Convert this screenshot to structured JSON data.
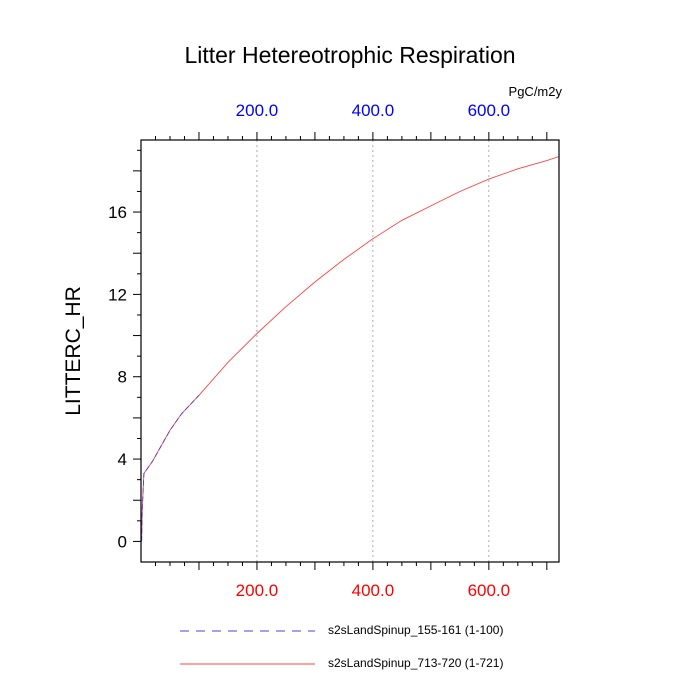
{
  "chart_data": {
    "type": "line",
    "title": "Litter Hetereotrophic Respiration",
    "units": "PgC/m2y",
    "ylabel": "LITTERC_HR",
    "xlabel": "",
    "xlim": [
      0,
      721
    ],
    "ylim": [
      -1,
      19.5
    ],
    "x_ticks_bottom": [
      200,
      400,
      600
    ],
    "x_tick_labels_bottom": [
      "200.0",
      "400.0",
      "600.0"
    ],
    "x_ticks_top": [
      200,
      400,
      600
    ],
    "x_tick_labels_top": [
      "200.0",
      "400.0",
      "600.0"
    ],
    "y_ticks": [
      0,
      4,
      8,
      12,
      16
    ],
    "y_tick_labels": [
      "0",
      "4",
      "8",
      "12",
      "16"
    ],
    "grid": "vertical dotted at major x ticks",
    "legend": "bottom",
    "series": [
      {
        "name": "s2sLandSpinup_155-161 (1-100)",
        "color": "#4444dd",
        "dash": "dashed",
        "x": [
          1,
          2,
          5,
          10,
          20,
          30,
          40,
          50,
          60,
          70,
          80,
          90,
          100
        ],
        "y": [
          0.0,
          1.5,
          3.3,
          3.5,
          3.9,
          4.4,
          4.9,
          5.4,
          5.8,
          6.2,
          6.5,
          6.8,
          7.1
        ]
      },
      {
        "name": "s2sLandSpinup_713-720 (1-721)",
        "color": "#ff4444",
        "dash": "solid",
        "x": [
          1,
          2,
          5,
          10,
          20,
          30,
          40,
          50,
          60,
          70,
          80,
          90,
          100,
          150,
          200,
          250,
          300,
          350,
          400,
          450,
          500,
          550,
          600,
          650,
          700,
          721
        ],
        "y": [
          0.0,
          1.5,
          3.3,
          3.5,
          3.9,
          4.4,
          4.9,
          5.4,
          5.8,
          6.2,
          6.5,
          6.8,
          7.1,
          8.7,
          10.1,
          11.4,
          12.6,
          13.7,
          14.7,
          15.6,
          16.3,
          17.0,
          17.6,
          18.1,
          18.5,
          18.7
        ]
      }
    ]
  }
}
